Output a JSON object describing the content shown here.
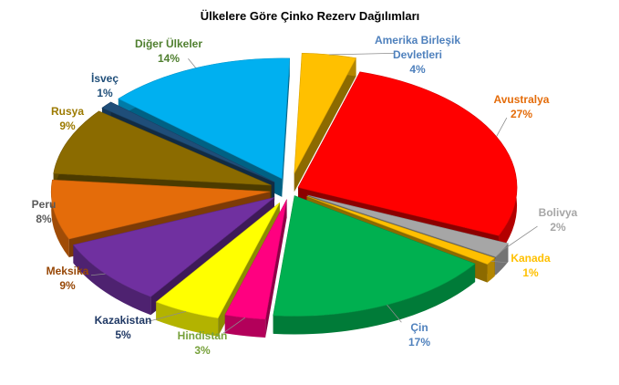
{
  "chart_data": {
    "type": "pie",
    "title": "Ülkelere Göre Çinko Rezerv Dağılımları",
    "slices": [
      {
        "name": [
          "Amerika Birleşik",
          "Devletleri"
        ],
        "value": 4,
        "label": "4%",
        "color": "#FFC000",
        "label_color": "#4F81BD"
      },
      {
        "name": [
          "Avustralya"
        ],
        "value": 27,
        "label": "27%",
        "color": "#FF0000",
        "label_color": "#E46C0A"
      },
      {
        "name": [
          "Bolivya"
        ],
        "value": 2,
        "label": "2%",
        "color": "#A6A6A6",
        "label_color": "#A6A6A6"
      },
      {
        "name": [
          "Kanada"
        ],
        "value": 1,
        "label": "1%",
        "color": "#FFC000",
        "label_color": "#FFC000"
      },
      {
        "name": [
          "Çin"
        ],
        "value": 17,
        "label": "17%",
        "color": "#00B050",
        "label_color": "#4F81BD"
      },
      {
        "name": [
          "Hindistan"
        ],
        "value": 3,
        "label": "3%",
        "color": "#FF0080",
        "label_color": "#77A13B"
      },
      {
        "name": [
          "Kazakistan"
        ],
        "value": 5,
        "label": "5%",
        "color": "#FFFF00",
        "label_color": "#1F3864"
      },
      {
        "name": [
          "Meksika"
        ],
        "value": 9,
        "label": "9%",
        "color": "#7030A0",
        "label_color": "#974706"
      },
      {
        "name": [
          "Peru"
        ],
        "value": 8,
        "label": "8%",
        "color": "#E46C0A",
        "label_color": "#595959"
      },
      {
        "name": [
          "Rusya"
        ],
        "value": 9,
        "label": "9%",
        "color": "#8B6B00",
        "label_color": "#9C7A00"
      },
      {
        "name": [
          "İsveç"
        ],
        "value": 1,
        "label": "1%",
        "color": "#1F4E79",
        "label_color": "#1F4E79"
      },
      {
        "name": [
          "Diğer Ülkeler"
        ],
        "value": 14,
        "label": "14%",
        "color": "#00B0F0",
        "label_color": "#4F7F2F"
      }
    ]
  }
}
